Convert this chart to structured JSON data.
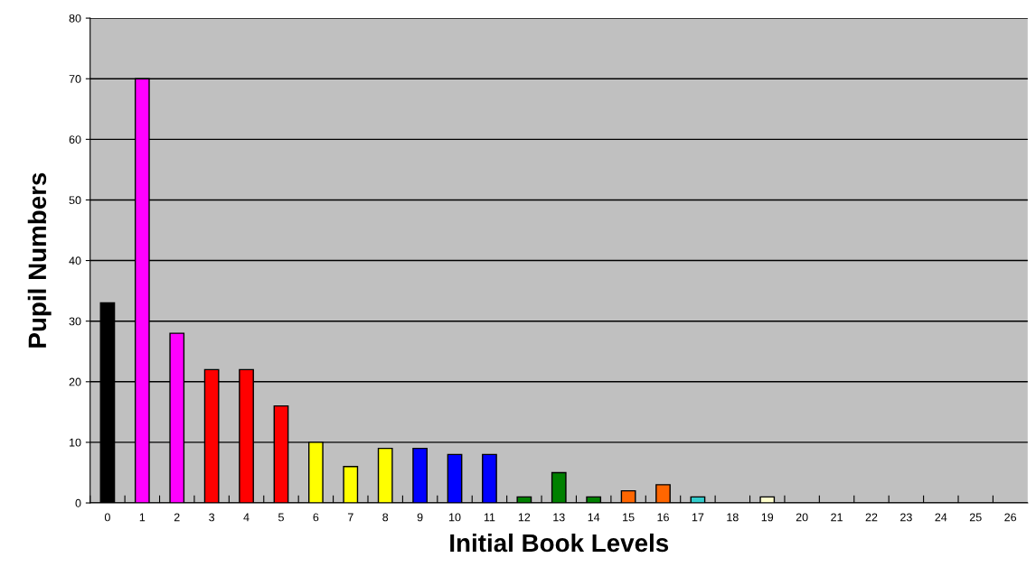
{
  "chart_data": {
    "type": "bar",
    "xlabel": "Initial Book Levels",
    "ylabel": "Pupil Numbers",
    "categories": [
      "0",
      "1",
      "2",
      "3",
      "4",
      "5",
      "6",
      "7",
      "8",
      "9",
      "10",
      "11",
      "12",
      "13",
      "14",
      "15",
      "16",
      "17",
      "18",
      "19",
      "20",
      "21",
      "22",
      "23",
      "24",
      "25",
      "26"
    ],
    "values": [
      33,
      70,
      28,
      22,
      22,
      16,
      10,
      6,
      9,
      9,
      8,
      8,
      1,
      5,
      1,
      2,
      3,
      1,
      0,
      1,
      0,
      0,
      0,
      0,
      0,
      0,
      0
    ],
    "colors": [
      "#000000",
      "#ff00ff",
      "#ff00ff",
      "#ff0000",
      "#ff0000",
      "#ff0000",
      "#ffff00",
      "#ffff00",
      "#ffff00",
      "#0000ff",
      "#0000ff",
      "#0000ff",
      "#008000",
      "#008000",
      "#008000",
      "#ff6600",
      "#ff6600",
      "#33cccc",
      "#ffffcc",
      "#ffffcc",
      "#ffffcc",
      "#ffffcc",
      "#ffffcc",
      "#ffffcc",
      "#ffffcc",
      "#ffffcc",
      "#ffffcc"
    ],
    "ylim": [
      0,
      80
    ],
    "yticks": [
      0,
      10,
      20,
      30,
      40,
      50,
      60,
      70,
      80
    ],
    "grid": "y"
  }
}
